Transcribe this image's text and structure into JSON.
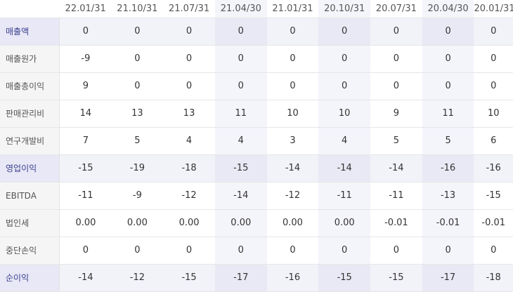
{
  "headers": [
    "22.01/31",
    "21.10/31",
    "21.07/31",
    "21.04/30",
    "21.01/31",
    "20.10/31",
    "20.07/31",
    "20.04/30",
    "20.01/31"
  ],
  "rows": [
    {
      "label": "매출액",
      "values": [
        "0",
        "0",
        "0",
        "0",
        "0",
        "0",
        "0",
        "0",
        "0"
      ]
    },
    {
      "label": "매출원가",
      "values": [
        "-9",
        "0",
        "0",
        "0",
        "0",
        "0",
        "0",
        "0",
        "0"
      ]
    },
    {
      "label": "매출총이익",
      "values": [
        "9",
        "0",
        "0",
        "0",
        "0",
        "0",
        "0",
        "0",
        "0"
      ]
    },
    {
      "label": "판매관리비",
      "values": [
        "14",
        "13",
        "13",
        "11",
        "10",
        "10",
        "9",
        "11",
        "10"
      ]
    },
    {
      "label": "연구개발비",
      "values": [
        "7",
        "5",
        "4",
        "4",
        "3",
        "4",
        "5",
        "5",
        "6"
      ]
    },
    {
      "label": "영업이익",
      "values": [
        "-15",
        "-19",
        "-18",
        "-15",
        "-14",
        "-14",
        "-14",
        "-16",
        "-16"
      ]
    },
    {
      "label": "EBITDA",
      "values": [
        "-11",
        "-9",
        "-12",
        "-14",
        "-12",
        "-11",
        "-11",
        "-13",
        "-15"
      ]
    },
    {
      "label": "법인세",
      "values": [
        "0.00",
        "0.00",
        "0.00",
        "0.00",
        "0.00",
        "0.00",
        "-0.01",
        "-0.01",
        "-0.01"
      ]
    },
    {
      "label": "중단손익",
      "values": [
        "0",
        "0",
        "0",
        "0",
        "0",
        "0",
        "0",
        "0",
        "0"
      ]
    },
    {
      "label": "순이익",
      "values": [
        "-14",
        "-12",
        "-15",
        "-17",
        "-16",
        "-15",
        "-15",
        "-17",
        "-18"
      ]
    }
  ]
}
